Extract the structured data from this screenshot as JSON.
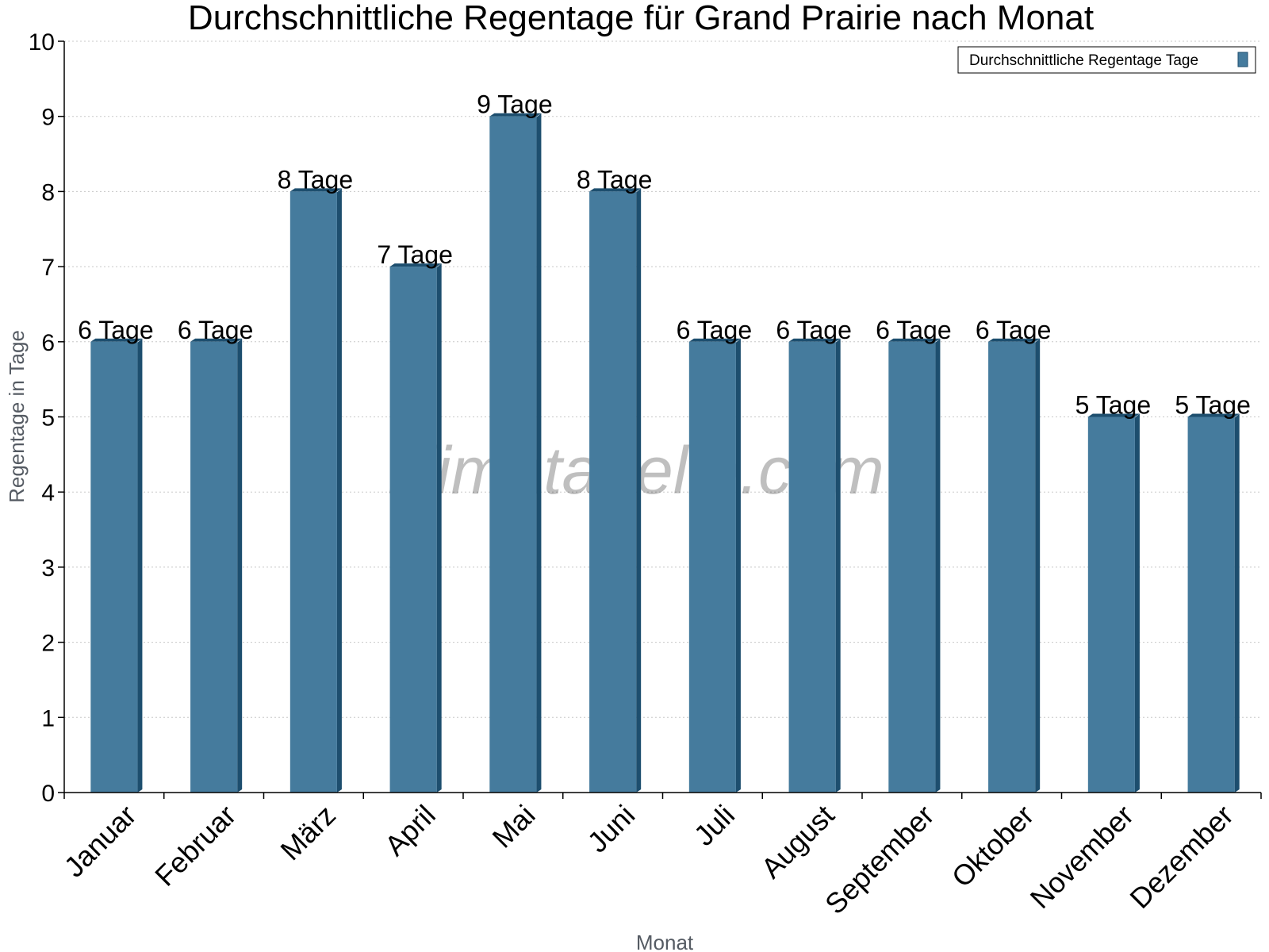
{
  "chart_data": {
    "type": "bar",
    "title": "Durchschnittliche Regentage für Grand Prairie nach Monat",
    "xlabel": "Monat",
    "ylabel": "Regentage in Tage",
    "categories": [
      "Januar",
      "Februar",
      "März",
      "April",
      "Mai",
      "Juni",
      "Juli",
      "August",
      "September",
      "Oktober",
      "November",
      "Dezember"
    ],
    "series": [
      {
        "name": "Durchschnittliche Regentage Tage",
        "values": [
          6,
          6,
          8,
          7,
          9,
          8,
          6,
          6,
          6,
          6,
          5,
          5
        ],
        "data_labels": [
          "6 Tage",
          "6 Tage",
          "8 Tage",
          "7 Tage",
          "9 Tage",
          "8 Tage",
          "6 Tage",
          "6 Tage",
          "6 Tage",
          "6 Tage",
          "5 Tage",
          "5 Tage"
        ]
      }
    ],
    "ylim": [
      0,
      10
    ],
    "yticks": [
      0,
      1,
      2,
      3,
      4,
      5,
      6,
      7,
      8,
      9,
      10
    ],
    "grid": true,
    "legend": "top-right",
    "colors": {
      "bar": "#457b9d",
      "bar_side": "#1d4e6e",
      "grid": "#c8c8c8"
    }
  },
  "watermark": "klimatabelle.com"
}
